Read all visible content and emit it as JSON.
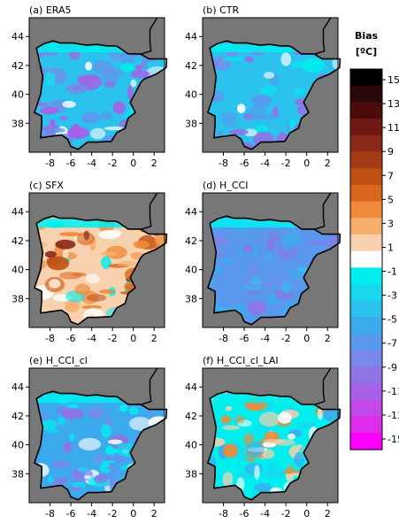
{
  "panels": [
    {
      "title": "(a) ERA5",
      "style": "cold"
    },
    {
      "title": "(b) CTR",
      "style": "cold"
    },
    {
      "title": "(c) SFX",
      "style": "warm"
    },
    {
      "title": "(d) H_CCI",
      "style": "uniform"
    },
    {
      "title": "(e) H_CCI_cl",
      "style": "mixed"
    },
    {
      "title": "(f) H_CCI_cl_LAI",
      "style": "neutral"
    }
  ],
  "axes": {
    "lat_ticks": [
      "44",
      "42",
      "40",
      "38"
    ],
    "lon_ticks": [
      "-8",
      "-6",
      "-4",
      "-2",
      "0",
      "2"
    ]
  },
  "colorbar": {
    "title_line1": "Bias",
    "title_line2": "[ºC]",
    "tick_labels": [
      "15",
      "13",
      "11",
      "9",
      "7",
      "5",
      "3",
      "1",
      "-1",
      "-3",
      "-5",
      "-7",
      "-9",
      "-11",
      "-13",
      "-15"
    ],
    "colors_top_to_bottom": [
      "#000000",
      "#2b0808",
      "#4d0c0c",
      "#6e1a12",
      "#8b2a18",
      "#a33c16",
      "#bf5012",
      "#d9661c",
      "#ee8a3a",
      "#f5ae6e",
      "#f8d2ae",
      "#ffffff",
      "#00eeee",
      "#18d8ee",
      "#2cc2ee",
      "#3cabee",
      "#5a98ee",
      "#7a88ea",
      "#8f74e6",
      "#a860e6",
      "#c248e8",
      "#dd2cec",
      "#ff00ff"
    ]
  },
  "colors": {
    "ocean": "#777777",
    "coast": "#000000"
  }
}
